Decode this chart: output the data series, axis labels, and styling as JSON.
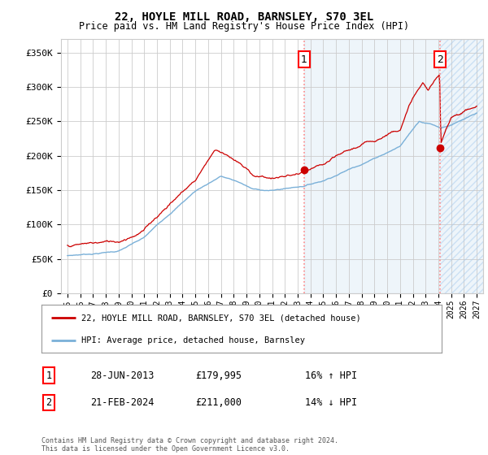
{
  "title": "22, HOYLE MILL ROAD, BARNSLEY, S70 3EL",
  "subtitle": "Price paid vs. HM Land Registry's House Price Index (HPI)",
  "ylabel_ticks": [
    "£0",
    "£50K",
    "£100K",
    "£150K",
    "£200K",
    "£250K",
    "£300K",
    "£350K"
  ],
  "ytick_vals": [
    0,
    50000,
    100000,
    150000,
    200000,
    250000,
    300000,
    350000
  ],
  "ylim": [
    0,
    370000
  ],
  "xlim_start": 1994.5,
  "xlim_end": 2027.5,
  "sale1_date": "28-JUN-2013",
  "sale1_price": 179995,
  "sale1_year": 2013.49,
  "sale1_label": "1",
  "sale1_pct": "16% ↑ HPI",
  "sale2_date": "21-FEB-2024",
  "sale2_price": 211000,
  "sale2_year": 2024.13,
  "sale2_label": "2",
  "sale2_pct": "14% ↓ HPI",
  "legend_line1": "22, HOYLE MILL ROAD, BARNSLEY, S70 3EL (detached house)",
  "legend_line2": "HPI: Average price, detached house, Barnsley",
  "footnote": "Contains HM Land Registry data © Crown copyright and database right 2024.\nThis data is licensed under the Open Government Licence v3.0.",
  "hpi_color": "#7ab0d8",
  "price_color": "#cc0000",
  "bg_color": "#ffffff",
  "grid_color": "#cccccc",
  "xticks": [
    1995,
    1996,
    1997,
    1998,
    1999,
    2000,
    2001,
    2002,
    2003,
    2004,
    2005,
    2006,
    2007,
    2008,
    2009,
    2010,
    2011,
    2012,
    2013,
    2014,
    2015,
    2016,
    2017,
    2018,
    2019,
    2020,
    2021,
    2022,
    2023,
    2024,
    2025,
    2026,
    2027
  ]
}
